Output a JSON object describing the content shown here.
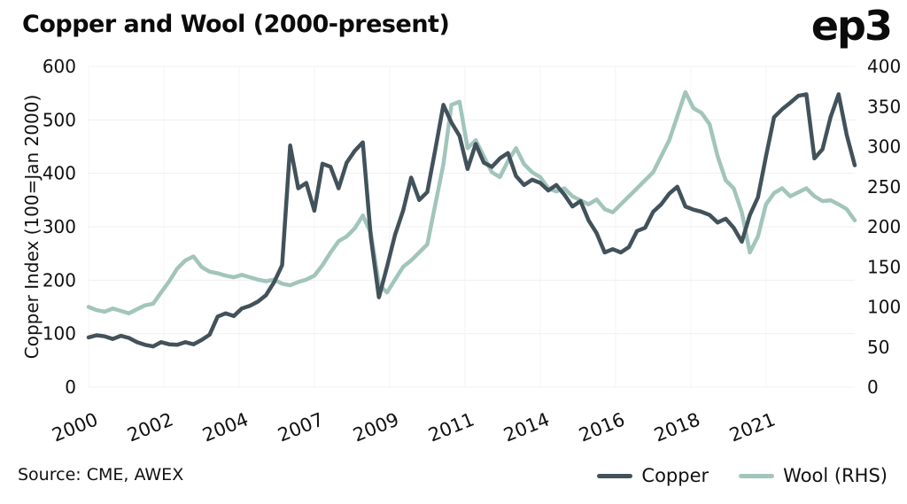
{
  "header": {
    "title": "Copper and Wool (2000-present)",
    "logo": "ep3"
  },
  "footer": {
    "source": "Source: CME, AWEX"
  },
  "legend": [
    {
      "label": "Copper",
      "color": "#42525b"
    },
    {
      "label": "Wool (RHS)",
      "color": "#a2c5bb"
    }
  ],
  "chart_data": {
    "type": "line",
    "title": "Copper and Wool (2000-present)",
    "x_start_year": 2000,
    "months_per_point": 3,
    "x_months_span": 285,
    "grid": true,
    "legend_position": "bottom-right",
    "left_axis": {
      "label": "Copper Index (100=Jan 2000)",
      "range": [
        0,
        600
      ],
      "ticks": [
        0,
        100,
        200,
        300,
        400,
        500,
        600
      ]
    },
    "right_axis": {
      "label": "Wool (RHS)",
      "range": [
        0,
        400
      ],
      "ticks": [
        0,
        50,
        100,
        150,
        200,
        250,
        300,
        350,
        400
      ]
    },
    "x_ticks": {
      "months": [
        0,
        28,
        56,
        84,
        112,
        140,
        168,
        196,
        224,
        252
      ],
      "labels": [
        "2000",
        "2002",
        "2004",
        "2007",
        "2009",
        "2011",
        "2014",
        "2016",
        "2018",
        "2021"
      ]
    },
    "series": [
      {
        "name": "Copper",
        "axis": "left",
        "color": "#42525b",
        "values": [
          93,
          97,
          95,
          90,
          96,
          92,
          84,
          79,
          76,
          84,
          80,
          79,
          84,
          80,
          88,
          98,
          132,
          138,
          133,
          147,
          152,
          160,
          172,
          196,
          228,
          452,
          372,
          382,
          330,
          418,
          412,
          372,
          420,
          442,
          458,
          280,
          168,
          225,
          285,
          330,
          392,
          350,
          365,
          445,
          528,
          495,
          470,
          408,
          455,
          420,
          412,
          428,
          438,
          395,
          378,
          388,
          382,
          368,
          378,
          360,
          338,
          348,
          312,
          288,
          252,
          258,
          252,
          262,
          292,
          298,
          328,
          342,
          362,
          375,
          338,
          332,
          328,
          322,
          308,
          315,
          298,
          272,
          322,
          355,
          432,
          505,
          520,
          532,
          545,
          548,
          428,
          445,
          505,
          548,
          472,
          415
        ]
      },
      {
        "name": "Wool (RHS)",
        "axis": "right",
        "color": "#a2c5bb",
        "values": [
          100,
          96,
          94,
          98,
          95,
          92,
          97,
          102,
          104,
          118,
          132,
          148,
          158,
          163,
          150,
          144,
          142,
          139,
          137,
          140,
          137,
          134,
          132,
          134,
          129,
          127,
          131,
          134,
          139,
          152,
          168,
          182,
          188,
          198,
          214,
          192,
          128,
          118,
          134,
          150,
          158,
          168,
          178,
          228,
          278,
          352,
          356,
          298,
          308,
          288,
          268,
          262,
          282,
          298,
          278,
          268,
          262,
          248,
          244,
          248,
          238,
          233,
          228,
          234,
          222,
          218,
          228,
          238,
          248,
          258,
          268,
          288,
          308,
          338,
          368,
          348,
          342,
          328,
          288,
          258,
          248,
          218,
          168,
          188,
          228,
          242,
          248,
          238,
          243,
          248,
          238,
          232,
          233,
          228,
          222,
          208
        ]
      }
    ]
  }
}
